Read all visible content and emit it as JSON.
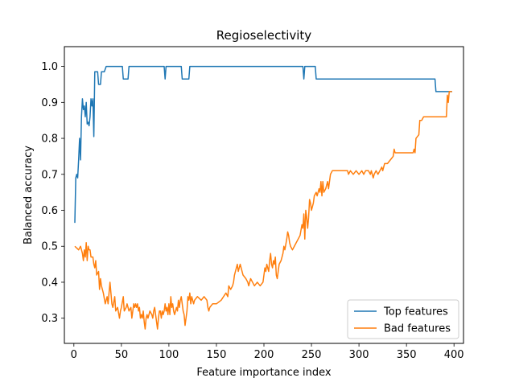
{
  "chart_data": {
    "type": "line",
    "title": "Regioselectivity",
    "xlabel": "Feature importance index",
    "ylabel": "Balanced accuracy",
    "xlim": [
      -10,
      410
    ],
    "ylim": [
      0.23,
      1.055
    ],
    "xticks": [
      0,
      50,
      100,
      150,
      200,
      250,
      300,
      350,
      400
    ],
    "yticks": [
      0.3,
      0.4,
      0.5,
      0.6,
      0.7,
      0.8,
      0.9,
      1.0
    ],
    "ytick_labels": [
      "0.3",
      "0.4",
      "0.5",
      "0.6",
      "0.7",
      "0.8",
      "0.9",
      "1.0"
    ],
    "grid": false,
    "legend_position": "lower-right",
    "series": [
      {
        "name": "Top features",
        "color": "#1f77b4",
        "points": [
          [
            1,
            0.565
          ],
          [
            2,
            0.69
          ],
          [
            3,
            0.7
          ],
          [
            4,
            0.69
          ],
          [
            5,
            0.74
          ],
          [
            6,
            0.8
          ],
          [
            7,
            0.74
          ],
          [
            8,
            0.86
          ],
          [
            9,
            0.91
          ],
          [
            10,
            0.88
          ],
          [
            11,
            0.89
          ],
          [
            12,
            0.86
          ],
          [
            13,
            0.9
          ],
          [
            14,
            0.84
          ],
          [
            15,
            0.845
          ],
          [
            16,
            0.835
          ],
          [
            17,
            0.86
          ],
          [
            18,
            0.91
          ],
          [
            19,
            0.89
          ],
          [
            20,
            0.91
          ],
          [
            21,
            0.805
          ],
          [
            22,
            0.985
          ],
          [
            23,
            0.985
          ],
          [
            24,
            0.985
          ],
          [
            25,
            0.985
          ],
          [
            26,
            0.95
          ],
          [
            27,
            0.95
          ],
          [
            28,
            0.95
          ],
          [
            29,
            0.985
          ],
          [
            30,
            0.985
          ],
          [
            32,
            0.985
          ],
          [
            34,
            1.0
          ],
          [
            38,
            1.0
          ],
          [
            44,
            1.0
          ],
          [
            49,
            1.0
          ],
          [
            51,
            1.0
          ],
          [
            52,
            0.965
          ],
          [
            55,
            0.965
          ],
          [
            57,
            0.965
          ],
          [
            58,
            1.0
          ],
          [
            70,
            1.0
          ],
          [
            85,
            1.0
          ],
          [
            94,
            1.0
          ],
          [
            95,
            1.0
          ],
          [
            96,
            0.965
          ],
          [
            97,
            1.0
          ],
          [
            100,
            1.0
          ],
          [
            113,
            1.0
          ],
          [
            114,
            0.965
          ],
          [
            118,
            0.965
          ],
          [
            121,
            0.965
          ],
          [
            122,
            1.0
          ],
          [
            140,
            1.0
          ],
          [
            170,
            1.0
          ],
          [
            200,
            1.0
          ],
          [
            230,
            1.0
          ],
          [
            241,
            1.0
          ],
          [
            242,
            0.965
          ],
          [
            243,
            1.0
          ],
          [
            254,
            1.0
          ],
          [
            255,
            0.965
          ],
          [
            300,
            0.965
          ],
          [
            350,
            0.965
          ],
          [
            380,
            0.965
          ],
          [
            381,
            0.93
          ],
          [
            398,
            0.93
          ]
        ]
      },
      {
        "name": "Bad features",
        "color": "#ff7f0e",
        "points": [
          [
            1,
            0.5
          ],
          [
            3,
            0.495
          ],
          [
            5,
            0.49
          ],
          [
            7,
            0.5
          ],
          [
            9,
            0.48
          ],
          [
            10,
            0.46
          ],
          [
            11,
            0.49
          ],
          [
            12,
            0.47
          ],
          [
            13,
            0.51
          ],
          [
            14,
            0.46
          ],
          [
            15,
            0.5
          ],
          [
            16,
            0.49
          ],
          [
            17,
            0.49
          ],
          [
            18,
            0.47
          ],
          [
            20,
            0.47
          ],
          [
            21,
            0.45
          ],
          [
            22,
            0.44
          ],
          [
            23,
            0.46
          ],
          [
            24,
            0.42
          ],
          [
            26,
            0.43
          ],
          [
            27,
            0.38
          ],
          [
            28,
            0.41
          ],
          [
            29,
            0.39
          ],
          [
            30,
            0.38
          ],
          [
            31,
            0.37
          ],
          [
            33,
            0.34
          ],
          [
            34,
            0.35
          ],
          [
            35,
            0.36
          ],
          [
            36,
            0.34
          ],
          [
            37,
            0.37
          ],
          [
            38,
            0.4
          ],
          [
            39,
            0.37
          ],
          [
            40,
            0.34
          ],
          [
            41,
            0.33
          ],
          [
            43,
            0.36
          ],
          [
            44,
            0.32
          ],
          [
            46,
            0.33
          ],
          [
            48,
            0.3
          ],
          [
            49,
            0.32
          ],
          [
            50,
            0.33
          ],
          [
            52,
            0.36
          ],
          [
            53,
            0.32
          ],
          [
            55,
            0.33
          ],
          [
            56,
            0.34
          ],
          [
            58,
            0.32
          ],
          [
            60,
            0.33
          ],
          [
            61,
            0.3
          ],
          [
            62,
            0.32
          ],
          [
            63,
            0.34
          ],
          [
            64,
            0.33
          ],
          [
            65,
            0.34
          ],
          [
            66,
            0.33
          ],
          [
            67,
            0.34
          ],
          [
            68,
            0.32
          ],
          [
            69,
            0.33
          ],
          [
            70,
            0.3
          ],
          [
            71,
            0.31
          ],
          [
            72,
            0.3
          ],
          [
            73,
            0.32
          ],
          [
            74,
            0.29
          ],
          [
            75,
            0.27
          ],
          [
            76,
            0.3
          ],
          [
            77,
            0.31
          ],
          [
            78,
            0.3
          ],
          [
            80,
            0.32
          ],
          [
            82,
            0.31
          ],
          [
            83,
            0.3
          ],
          [
            84,
            0.32
          ],
          [
            85,
            0.33
          ],
          [
            86,
            0.31
          ],
          [
            87,
            0.29
          ],
          [
            88,
            0.27
          ],
          [
            89,
            0.3
          ],
          [
            90,
            0.32
          ],
          [
            91,
            0.32
          ],
          [
            92,
            0.3
          ],
          [
            93,
            0.32
          ],
          [
            94,
            0.31
          ],
          [
            95,
            0.32
          ],
          [
            96,
            0.34
          ],
          [
            97,
            0.32
          ],
          [
            98,
            0.33
          ],
          [
            99,
            0.31
          ],
          [
            100,
            0.34
          ],
          [
            101,
            0.31
          ],
          [
            102,
            0.36
          ],
          [
            103,
            0.33
          ],
          [
            104,
            0.34
          ],
          [
            105,
            0.32
          ],
          [
            106,
            0.31
          ],
          [
            107,
            0.32
          ],
          [
            108,
            0.33
          ],
          [
            109,
            0.32
          ],
          [
            110,
            0.35
          ],
          [
            111,
            0.33
          ],
          [
            112,
            0.35
          ],
          [
            113,
            0.36
          ],
          [
            114,
            0.34
          ],
          [
            115,
            0.32
          ],
          [
            116,
            0.31
          ],
          [
            117,
            0.28
          ],
          [
            118,
            0.3
          ],
          [
            119,
            0.32
          ],
          [
            120,
            0.36
          ],
          [
            121,
            0.35
          ],
          [
            122,
            0.37
          ],
          [
            123,
            0.34
          ],
          [
            124,
            0.36
          ],
          [
            125,
            0.35
          ],
          [
            126,
            0.34
          ],
          [
            127,
            0.35
          ],
          [
            130,
            0.36
          ],
          [
            134,
            0.35
          ],
          [
            137,
            0.36
          ],
          [
            140,
            0.35
          ],
          [
            141,
            0.33
          ],
          [
            142,
            0.32
          ],
          [
            143,
            0.33
          ],
          [
            146,
            0.34
          ],
          [
            150,
            0.34
          ],
          [
            155,
            0.35
          ],
          [
            160,
            0.37
          ],
          [
            162,
            0.36
          ],
          [
            163,
            0.39
          ],
          [
            165,
            0.38
          ],
          [
            167,
            0.39
          ],
          [
            168,
            0.4
          ],
          [
            169,
            0.42
          ],
          [
            171,
            0.44
          ],
          [
            172,
            0.45
          ],
          [
            173,
            0.43
          ],
          [
            175,
            0.45
          ],
          [
            178,
            0.42
          ],
          [
            181,
            0.41
          ],
          [
            183,
            0.4
          ],
          [
            184,
            0.39
          ],
          [
            186,
            0.41
          ],
          [
            188,
            0.4
          ],
          [
            190,
            0.39
          ],
          [
            193,
            0.4
          ],
          [
            196,
            0.39
          ],
          [
            199,
            0.4
          ],
          [
            201,
            0.44
          ],
          [
            202,
            0.43
          ],
          [
            203,
            0.45
          ],
          [
            205,
            0.43
          ],
          [
            206,
            0.46
          ],
          [
            207,
            0.48
          ],
          [
            208,
            0.45
          ],
          [
            209,
            0.44
          ],
          [
            210,
            0.46
          ],
          [
            211,
            0.45
          ],
          [
            212,
            0.47
          ],
          [
            213,
            0.42
          ],
          [
            214,
            0.41
          ],
          [
            216,
            0.45
          ],
          [
            218,
            0.46
          ],
          [
            220,
            0.48
          ],
          [
            221,
            0.5
          ],
          [
            222,
            0.49
          ],
          [
            224,
            0.52
          ],
          [
            225,
            0.54
          ],
          [
            226,
            0.53
          ],
          [
            227,
            0.51
          ],
          [
            228,
            0.5
          ],
          [
            230,
            0.49
          ],
          [
            232,
            0.5
          ],
          [
            234,
            0.51
          ],
          [
            236,
            0.52
          ],
          [
            238,
            0.53
          ],
          [
            240,
            0.56
          ],
          [
            241,
            0.55
          ],
          [
            242,
            0.59
          ],
          [
            243,
            0.52
          ],
          [
            244,
            0.6
          ],
          [
            245,
            0.58
          ],
          [
            246,
            0.55
          ],
          [
            247,
            0.58
          ],
          [
            248,
            0.63
          ],
          [
            249,
            0.62
          ],
          [
            250,
            0.6
          ],
          [
            251,
            0.61
          ],
          [
            252,
            0.62
          ],
          [
            253,
            0.64
          ],
          [
            255,
            0.65
          ],
          [
            256,
            0.64
          ],
          [
            258,
            0.66
          ],
          [
            259,
            0.65
          ],
          [
            260,
            0.68
          ],
          [
            261,
            0.64
          ],
          [
            262,
            0.68
          ],
          [
            263,
            0.65
          ],
          [
            265,
            0.66
          ],
          [
            266,
            0.67
          ],
          [
            267,
            0.68
          ],
          [
            268,
            0.66
          ],
          [
            270,
            0.7
          ],
          [
            272,
            0.71
          ],
          [
            280,
            0.71
          ],
          [
            288,
            0.71
          ],
          [
            289,
            0.7
          ],
          [
            291,
            0.71
          ],
          [
            294,
            0.7
          ],
          [
            297,
            0.71
          ],
          [
            300,
            0.7
          ],
          [
            303,
            0.71
          ],
          [
            305,
            0.7
          ],
          [
            307,
            0.71
          ],
          [
            310,
            0.71
          ],
          [
            312,
            0.7
          ],
          [
            313,
            0.71
          ],
          [
            315,
            0.69
          ],
          [
            316,
            0.7
          ],
          [
            318,
            0.71
          ],
          [
            320,
            0.7
          ],
          [
            322,
            0.71
          ],
          [
            324,
            0.72
          ],
          [
            325,
            0.71
          ],
          [
            327,
            0.73
          ],
          [
            330,
            0.73
          ],
          [
            333,
            0.74
          ],
          [
            336,
            0.75
          ],
          [
            337,
            0.77
          ],
          [
            338,
            0.76
          ],
          [
            345,
            0.76
          ],
          [
            357,
            0.76
          ],
          [
            358,
            0.77
          ],
          [
            359,
            0.76
          ],
          [
            360,
            0.8
          ],
          [
            363,
            0.81
          ],
          [
            364,
            0.85
          ],
          [
            366,
            0.85
          ],
          [
            368,
            0.86
          ],
          [
            381,
            0.86
          ],
          [
            382,
            0.86
          ],
          [
            392,
            0.86
          ],
          [
            393,
            0.92
          ],
          [
            394,
            0.9
          ],
          [
            395,
            0.93
          ],
          [
            398,
            0.93
          ]
        ]
      }
    ]
  }
}
